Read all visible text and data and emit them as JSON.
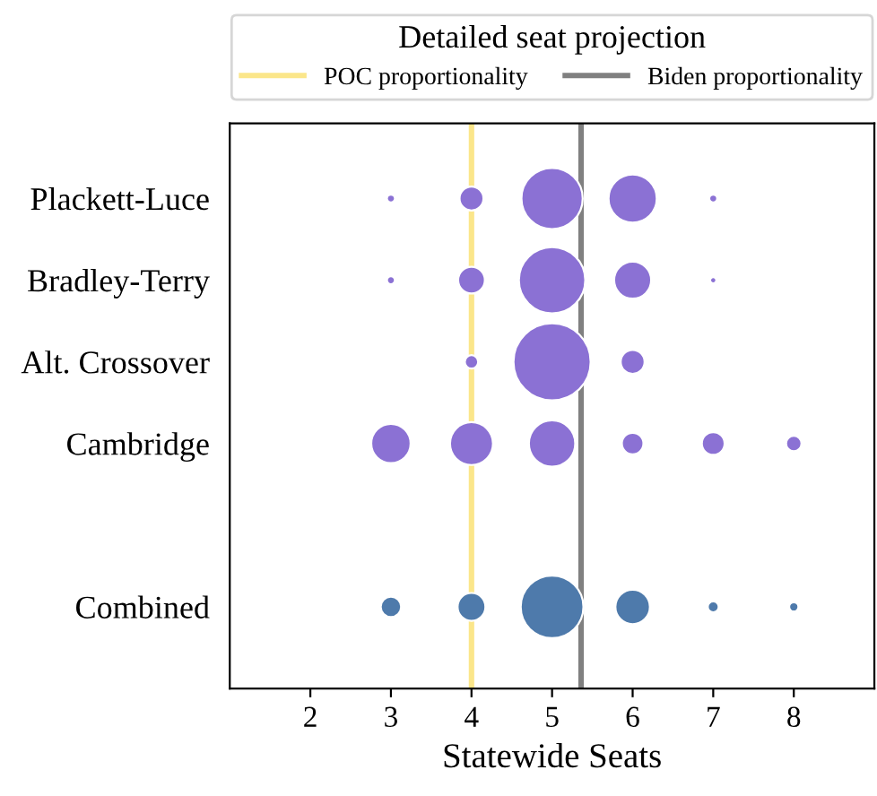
{
  "chart_data": {
    "type": "bubble",
    "orientation": "horizontal",
    "xlabel": "Statewide Seats",
    "legend_title": "Detailed seat projection",
    "legend": "top",
    "grid": false,
    "categories": [
      "Plackett-Luce",
      "Bradley-Terry",
      "Alt. Crossover",
      "Cambridge",
      null,
      "Combined"
    ],
    "xlim": [
      1,
      9
    ],
    "xticks": [
      2,
      3,
      4,
      5,
      6,
      7,
      8
    ],
    "series": [
      {
        "colors": [
          "#8b71d4",
          "#8b71d4",
          null,
          "#8b71d4",
          null,
          "#4e7aab"
        ],
        "values": [
          3,
          3,
          null,
          3,
          null,
          3
        ],
        "sizes": [
          0.006,
          0.006,
          null,
          0.26,
          null,
          0.07
        ]
      },
      {
        "colors": [
          "#8b71d4",
          "#8b71d4",
          "#8b71d4",
          "#8b71d4",
          null,
          "#4e7aab"
        ],
        "values": [
          4,
          4,
          4,
          4,
          null,
          4
        ],
        "sizes": [
          0.096,
          0.12,
          0.03,
          0.31,
          null,
          0.13
        ]
      },
      {
        "colors": [
          "#8b71d4",
          "#8b71d4",
          "#8b71d4",
          "#8b71d4",
          null,
          "#4e7aab"
        ],
        "values": [
          5,
          5,
          5,
          5,
          null,
          5
        ],
        "sizes": [
          0.63,
          0.74,
          1,
          0.36,
          null,
          0.66
        ]
      },
      {
        "colors": [
          "#8b71d4",
          "#8b71d4",
          "#8b71d4",
          "#8b71d4",
          null,
          "#4e7aab"
        ],
        "values": [
          6,
          6,
          6,
          6,
          null,
          6
        ],
        "sizes": [
          0.39,
          0.23,
          0.096,
          0.078,
          null,
          0.2
        ]
      },
      {
        "colors": [
          "#8b71d4",
          "#8b71d4",
          null,
          "#8b71d4",
          null,
          "#4e7aab"
        ],
        "values": [
          7,
          7,
          null,
          7,
          null,
          7
        ],
        "sizes": [
          0.006,
          0.003,
          null,
          0.087,
          null,
          0.02
        ]
      },
      {
        "colors": [
          null,
          null,
          null,
          "#8b71d4",
          null,
          "#4e7aab"
        ],
        "values": [
          null,
          null,
          null,
          8,
          null,
          8
        ],
        "sizes": [
          null,
          null,
          null,
          0.04,
          null,
          0.009
        ]
      }
    ],
    "ref_lines": [
      {
        "axis": "x",
        "value": 4,
        "label": "POC proportionality",
        "color": "#fbe68a",
        "line_style": "solid"
      },
      {
        "axis": "x",
        "value": 5.36,
        "label": "Biden proportionality",
        "color": "#808080",
        "line_style": "solid"
      }
    ]
  }
}
